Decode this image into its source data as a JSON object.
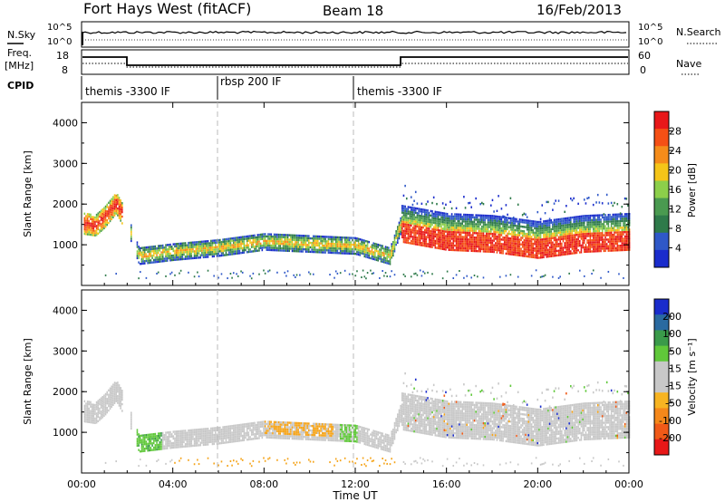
{
  "header": {
    "title": "Fort Hays West (fitACF)",
    "beam": "Beam 18",
    "date": "16/Feb/2013"
  },
  "status_panel": {
    "nsky_label": "N.Sky",
    "nsearch_label": "N.Search",
    "nsky_ticks": [
      "10^5",
      "10^0"
    ],
    "nsearch_ticks": [
      "10^5",
      "10^0"
    ],
    "freq_label": "Freq.",
    "freq_unit": "[MHz]",
    "freq_ticks": [
      "18",
      "8"
    ],
    "nave_label": "Nave",
    "nave_ticks": [
      "60",
      "0"
    ],
    "cpid_label": "CPID",
    "cpid_segments": [
      {
        "label": "themis -3300 IF",
        "start_hour": 0.0,
        "end_hour": 6.0
      },
      {
        "label": "rbsp 200 IF",
        "start_hour": 6.0,
        "end_hour": 12.0
      },
      {
        "label": "themis -3300 IF",
        "start_hour": 12.0,
        "end_hour": 24.0
      }
    ]
  },
  "colors": {
    "power_scale": [
      "#1a2ccc",
      "#2f58c8",
      "#2e7a4a",
      "#4a9a50",
      "#8ccf4a",
      "#f5c518",
      "#f58c1a",
      "#f55015",
      "#e8181a"
    ],
    "velocity_scale": [
      "#e81818",
      "#f05a18",
      "#f5881a",
      "#f7b422",
      "#c8c8c8",
      "#c8c8c8",
      "#60c83a",
      "#3a9a4a",
      "#2a6aa0",
      "#1a2ccc"
    ],
    "ground_scatter": "#c8c8c8"
  },
  "chart_data": [
    {
      "type": "heatmap",
      "panel": "power",
      "ylabel": "Slant Range [km]",
      "xlabel": "Time UT",
      "x": [
        "00:00",
        "04:00",
        "08:00",
        "12:00",
        "16:00",
        "20:00",
        "00:00"
      ],
      "xlim_hours": [
        0,
        24
      ],
      "ylim": [
        0,
        4500
      ],
      "yticks": [
        1000,
        2000,
        3000,
        4000
      ],
      "colorbar": {
        "label": "Power [dB]",
        "range": [
          0,
          32
        ],
        "ticks": [
          "4",
          "8",
          "12",
          "16",
          "20",
          "24",
          "28"
        ]
      },
      "band_center_km": [
        [
          0.0,
          1500
        ],
        [
          0.6,
          1450
        ],
        [
          1.0,
          1650
        ],
        [
          1.5,
          2000
        ],
        [
          2.0,
          1500
        ],
        [
          2.5,
          700
        ],
        [
          4.0,
          800
        ],
        [
          6.0,
          900
        ],
        [
          8.0,
          1050
        ],
        [
          10.0,
          1000
        ],
        [
          12.0,
          950
        ],
        [
          13.5,
          700
        ],
        [
          14.0,
          1500
        ],
        [
          16.0,
          1300
        ],
        [
          18.0,
          1250
        ],
        [
          20.0,
          1100
        ],
        [
          22.0,
          1250
        ],
        [
          24.0,
          1300
        ]
      ]
    },
    {
      "type": "heatmap",
      "panel": "velocity",
      "ylabel": "Slant Range [km]",
      "xlabel": "Time UT",
      "x": [
        "00:00",
        "04:00",
        "08:00",
        "12:00",
        "16:00",
        "20:00",
        "00:00"
      ],
      "xlim_hours": [
        0,
        24
      ],
      "ylim": [
        0,
        4500
      ],
      "yticks": [
        1000,
        2000,
        3000,
        4000
      ],
      "colorbar": {
        "label": "Velocity [m s⁻¹]",
        "range": [
          -250,
          250
        ],
        "ticks": [
          "200",
          "100",
          "50",
          "15",
          "-15",
          "-50",
          "-100",
          "-200"
        ]
      }
    }
  ]
}
